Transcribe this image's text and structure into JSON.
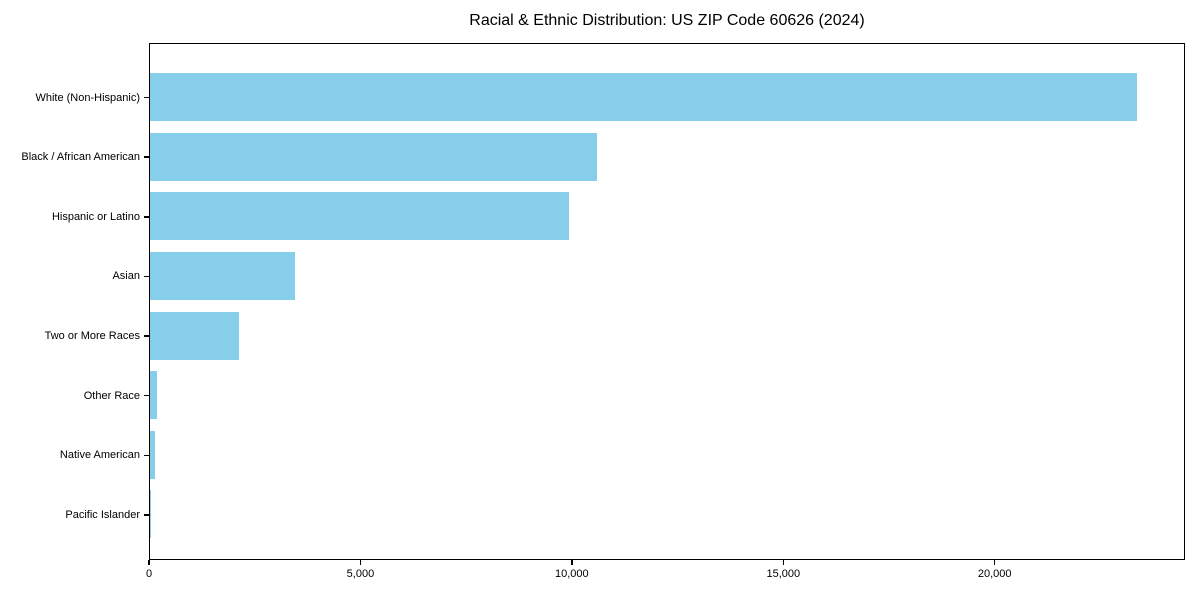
{
  "chart_data": {
    "type": "bar",
    "orientation": "horizontal",
    "title": "Racial & Ethnic Distribution: US ZIP Code 60626 (2024)",
    "categories": [
      "White (Non-Hispanic)",
      "Black / African American",
      "Hispanic or Latino",
      "Asian",
      "Two or More Races",
      "Other Race",
      "Native American",
      "Pacific Islander"
    ],
    "values": [
      23330,
      10570,
      9900,
      3430,
      2110,
      165,
      120,
      20
    ],
    "xlabel": "",
    "ylabel": "",
    "xlim": [
      0,
      24500
    ],
    "xticks": [
      0,
      5000,
      10000,
      15000,
      20000
    ],
    "xtick_labels": [
      "0",
      "5,000",
      "10,000",
      "15,000",
      "20,000"
    ],
    "bar_color": "#87CEEB",
    "axis_color": "#000000",
    "grid": false,
    "legend": null,
    "category_order": "largest value at top"
  }
}
